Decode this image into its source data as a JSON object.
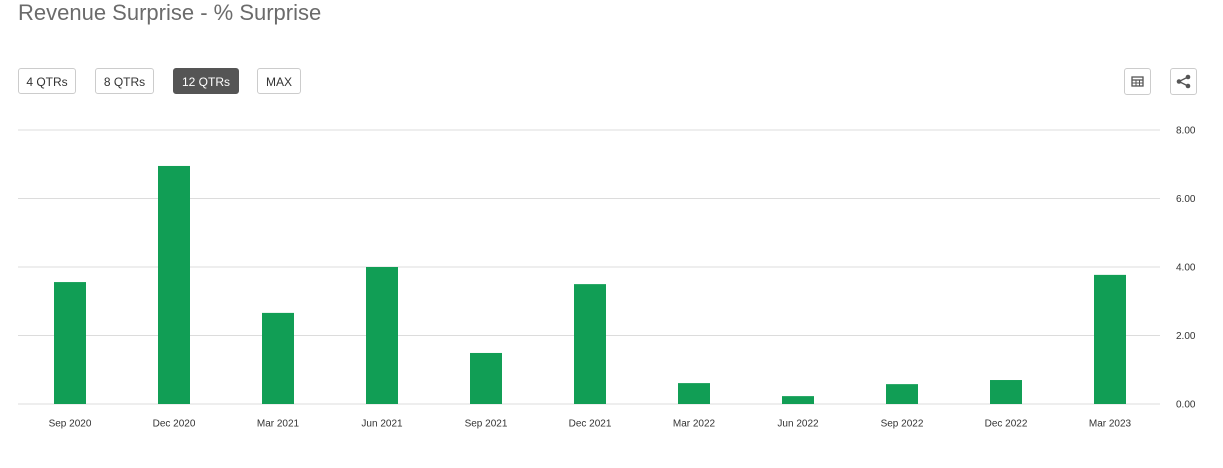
{
  "chart_data": {
    "type": "bar",
    "title": "Revenue Surprise - % Surprise",
    "categories": [
      "Sep 2020",
      "Dec 2020",
      "Mar 2021",
      "Jun 2021",
      "Sep 2021",
      "Dec 2021",
      "Mar 2022",
      "Jun 2022",
      "Sep 2022",
      "Dec 2022",
      "Mar 2023"
    ],
    "values": [
      3.56,
      6.95,
      2.66,
      4.0,
      1.49,
      3.5,
      0.61,
      0.23,
      0.58,
      0.7,
      3.77
    ],
    "color": "#119e55",
    "ylim": [
      0,
      8
    ],
    "yticks": [
      {
        "value": 0,
        "label": "0.00"
      },
      {
        "value": 2,
        "label": "2.00"
      },
      {
        "value": 4,
        "label": "4.00"
      },
      {
        "value": 6,
        "label": "6.00"
      },
      {
        "value": 8,
        "label": "8.00"
      }
    ],
    "grid": true
  },
  "controls": {
    "ranges": [
      "4 QTRs",
      "8 QTRs",
      "12 QTRs",
      "MAX"
    ],
    "active": 2
  }
}
